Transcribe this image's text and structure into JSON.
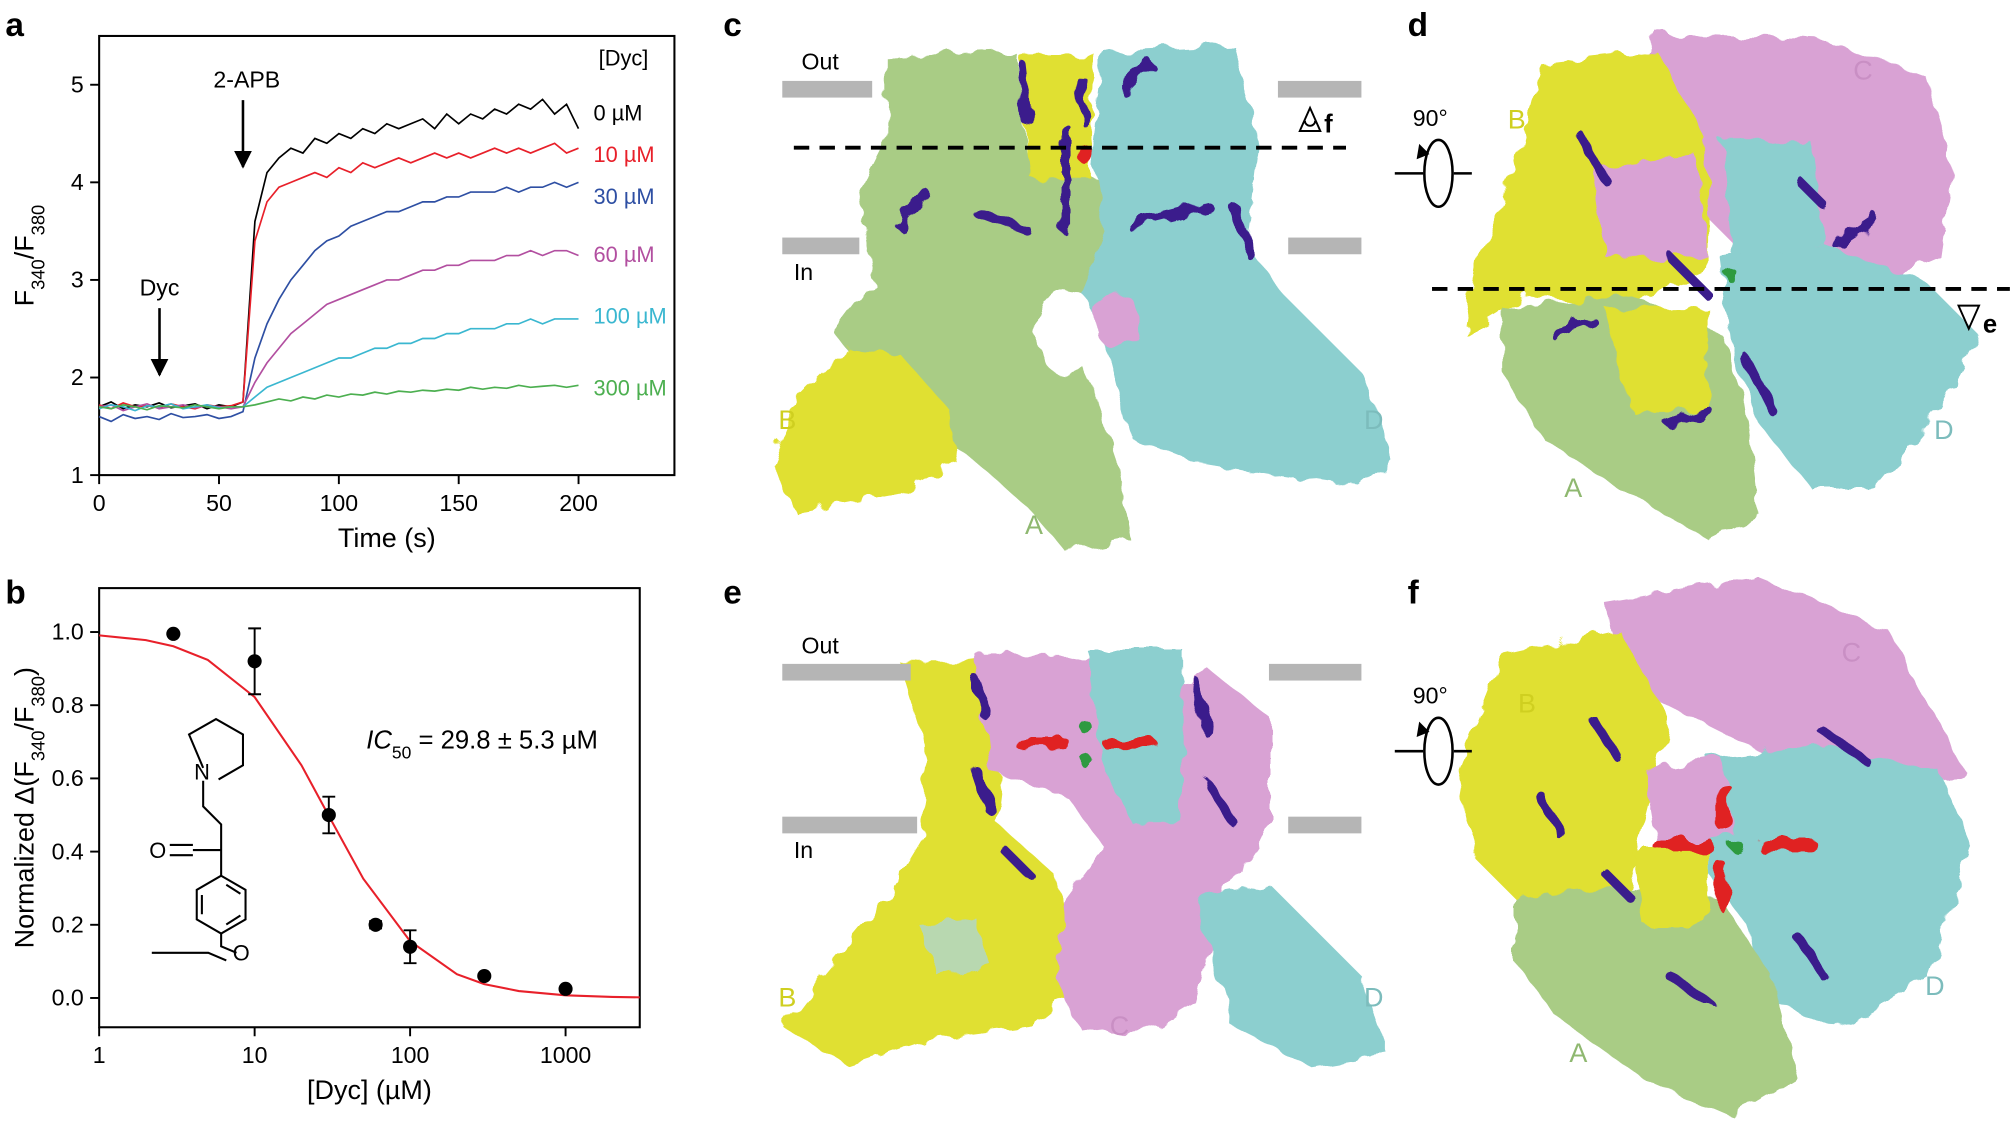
{
  "panel_labels": [
    "a",
    "b",
    "c",
    "d",
    "e",
    "f"
  ],
  "chart_data": [
    {
      "type": "line",
      "xlabel": "Time (s)",
      "ylabel": [
        "F",
        "340",
        "/F",
        "380"
      ],
      "legend_title": "[Dyc]",
      "annotations": [
        "Dyc",
        "2-APB"
      ],
      "x": [
        0,
        5,
        10,
        15,
        20,
        25,
        30,
        35,
        40,
        45,
        50,
        55,
        60,
        65,
        70,
        75,
        80,
        85,
        90,
        95,
        100,
        105,
        110,
        115,
        120,
        125,
        130,
        135,
        140,
        145,
        150,
        155,
        160,
        165,
        170,
        175,
        180,
        185,
        190,
        195,
        200
      ],
      "xlim": [
        0,
        240
      ],
      "xticks": [
        0,
        50,
        100,
        150,
        200
      ],
      "ylim": [
        1,
        5.5
      ],
      "yticks": [
        1,
        2,
        3,
        4,
        5
      ],
      "series": [
        {
          "name": "0 µM",
          "color": "#000000",
          "values": [
            1.7,
            1.75,
            1.68,
            1.72,
            1.7,
            1.74,
            1.69,
            1.71,
            1.73,
            1.68,
            1.72,
            1.7,
            1.75,
            3.6,
            4.1,
            4.25,
            4.35,
            4.3,
            4.45,
            4.4,
            4.5,
            4.45,
            4.55,
            4.5,
            4.6,
            4.55,
            4.6,
            4.65,
            4.55,
            4.7,
            4.6,
            4.7,
            4.65,
            4.75,
            4.7,
            4.8,
            4.75,
            4.85,
            4.7,
            4.8,
            4.55
          ]
        },
        {
          "name": "10 µM",
          "color": "#e8202a",
          "values": [
            1.72,
            1.68,
            1.74,
            1.7,
            1.71,
            1.69,
            1.73,
            1.7,
            1.68,
            1.72,
            1.7,
            1.71,
            1.75,
            3.4,
            3.8,
            3.95,
            4.0,
            4.05,
            4.1,
            4.05,
            4.15,
            4.1,
            4.2,
            4.15,
            4.2,
            4.25,
            4.2,
            4.25,
            4.3,
            4.25,
            4.3,
            4.25,
            4.3,
            4.35,
            4.3,
            4.35,
            4.3,
            4.35,
            4.4,
            4.3,
            4.35
          ]
        },
        {
          "name": "30 µM",
          "color": "#2e4fa3",
          "values": [
            1.6,
            1.55,
            1.62,
            1.58,
            1.6,
            1.57,
            1.63,
            1.59,
            1.6,
            1.62,
            1.58,
            1.6,
            1.65,
            2.2,
            2.55,
            2.8,
            3.0,
            3.15,
            3.3,
            3.4,
            3.45,
            3.55,
            3.6,
            3.65,
            3.7,
            3.7,
            3.75,
            3.8,
            3.8,
            3.85,
            3.85,
            3.9,
            3.9,
            3.9,
            3.95,
            3.9,
            3.95,
            3.95,
            4.0,
            3.95,
            4.0
          ]
        },
        {
          "name": "60 µM",
          "color": "#b24fa0",
          "values": [
            1.7,
            1.72,
            1.66,
            1.7,
            1.73,
            1.68,
            1.7,
            1.72,
            1.69,
            1.71,
            1.7,
            1.68,
            1.7,
            1.95,
            2.15,
            2.3,
            2.45,
            2.55,
            2.65,
            2.75,
            2.8,
            2.85,
            2.9,
            2.95,
            3.0,
            3.0,
            3.05,
            3.1,
            3.1,
            3.15,
            3.15,
            3.2,
            3.2,
            3.2,
            3.25,
            3.25,
            3.3,
            3.25,
            3.3,
            3.3,
            3.25
          ]
        },
        {
          "name": "100 µM",
          "color": "#3ab7d0",
          "values": [
            1.68,
            1.72,
            1.7,
            1.66,
            1.71,
            1.7,
            1.73,
            1.68,
            1.7,
            1.72,
            1.69,
            1.7,
            1.7,
            1.8,
            1.9,
            1.95,
            2.0,
            2.05,
            2.1,
            2.15,
            2.2,
            2.2,
            2.25,
            2.3,
            2.3,
            2.35,
            2.35,
            2.4,
            2.4,
            2.45,
            2.45,
            2.5,
            2.5,
            2.5,
            2.55,
            2.55,
            2.6,
            2.55,
            2.6,
            2.6,
            2.6
          ]
        },
        {
          "name": "300 µM",
          "color": "#4caf50",
          "values": [
            1.7,
            1.68,
            1.72,
            1.7,
            1.67,
            1.71,
            1.7,
            1.69,
            1.72,
            1.7,
            1.68,
            1.7,
            1.7,
            1.72,
            1.75,
            1.78,
            1.76,
            1.8,
            1.78,
            1.82,
            1.8,
            1.83,
            1.82,
            1.85,
            1.83,
            1.86,
            1.85,
            1.87,
            1.86,
            1.88,
            1.87,
            1.9,
            1.88,
            1.9,
            1.89,
            1.92,
            1.9,
            1.91,
            1.92,
            1.9,
            1.92
          ]
        }
      ]
    },
    {
      "type": "scatter",
      "xlabel": "[Dyc] (µM)",
      "ylabel": [
        "Normalized Δ(F",
        "340",
        "/F",
        "380",
        ")"
      ],
      "annotation": [
        "IC",
        "50",
        " = 29.8 ± 5.3 µM"
      ],
      "structure_labels": [
        "N",
        "O",
        "O"
      ],
      "xscale": "log",
      "xlim": [
        1,
        3000
      ],
      "xticks": [
        1,
        10,
        100,
        1000
      ],
      "ylim": [
        -0.08,
        1.12
      ],
      "yticks": [
        {
          "value": 0,
          "label": "0.0"
        },
        0.2,
        0.4,
        0.6,
        0.8,
        {
          "value": 1,
          "label": "1.0"
        }
      ],
      "series": [
        {
          "color": "#000000",
          "x": [
            3,
            10,
            30,
            60,
            100,
            300,
            1000
          ],
          "values": [
            0.995,
            0.92,
            0.5,
            0.2,
            0.14,
            0.06,
            0.025
          ],
          "errors": [
            null,
            0.09,
            0.05,
            0.01,
            0.045,
            null,
            null
          ]
        }
      ],
      "fit": {
        "color": "#e8202a",
        "x": [
          1,
          2,
          3,
          5,
          10,
          20,
          30,
          50,
          100,
          200,
          300,
          500,
          1000,
          2000,
          3000
        ],
        "values": [
          0.991,
          0.978,
          0.961,
          0.924,
          0.822,
          0.636,
          0.498,
          0.326,
          0.155,
          0.065,
          0.038,
          0.019,
          0.0073,
          0.0028,
          0.0016
        ]
      }
    }
  ],
  "panel_c": {
    "membrane_labels": [
      "Out",
      "In"
    ],
    "view_label": "f",
    "chains": [
      "B",
      "D",
      "A"
    ]
  },
  "panel_d": {
    "rotation": "90°",
    "view_label": "e",
    "chains": [
      "B",
      "C",
      "A",
      "D"
    ]
  },
  "panel_e": {
    "membrane_labels": [
      "Out",
      "In"
    ],
    "chains": [
      "B",
      "C",
      "D"
    ]
  },
  "panel_f": {
    "rotation": "90°",
    "chains": [
      "B",
      "C",
      "A",
      "D"
    ]
  }
}
